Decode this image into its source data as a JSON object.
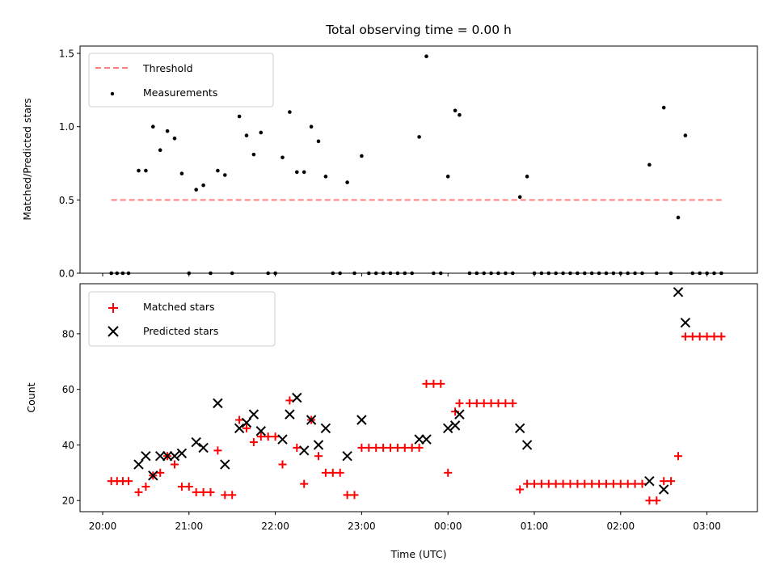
{
  "title": "Total observing time = 0.00 h",
  "x_axis": {
    "label": "Time (UTC)",
    "ticks": [
      {
        "t": "20:00",
        "label": "20:00"
      },
      {
        "t": "21:00",
        "label": "21:00"
      },
      {
        "t": "22:00",
        "label": "22:00"
      },
      {
        "t": "23:00",
        "label": "23:00"
      },
      {
        "t": "00:00",
        "label": "00:00"
      },
      {
        "t": "01:00",
        "label": "01:00"
      },
      {
        "t": "02:00",
        "label": "02:00"
      },
      {
        "t": "03:00",
        "label": "03:00"
      }
    ]
  },
  "colors": {
    "threshold": "#ff7f7f",
    "measurements": "#000000",
    "matched": "#ff0000",
    "predicted": "#000000"
  },
  "chart_data": [
    {
      "type": "scatter",
      "ylabel": "Matched/Predicted stars",
      "ylim": [
        0,
        1.55
      ],
      "yticks": [
        "0.0",
        "0.5",
        "1.0",
        "1.5"
      ],
      "legend_placement": "top-left",
      "series": [
        {
          "name": "Threshold",
          "kind": "dashed-line",
          "points": [
            [
              "20:06",
              0.5
            ],
            [
              "03:12",
              0.5
            ]
          ]
        },
        {
          "name": "Measurements",
          "kind": "dot",
          "points": [
            [
              "20:06",
              0
            ],
            [
              "20:10",
              0
            ],
            [
              "20:14",
              0
            ],
            [
              "20:18",
              0
            ],
            [
              "20:25",
              0.7
            ],
            [
              "20:30",
              0.7
            ],
            [
              "20:35",
              1.0
            ],
            [
              "20:40",
              0.84
            ],
            [
              "20:45",
              0.97
            ],
            [
              "20:50",
              0.92
            ],
            [
              "20:55",
              0.68
            ],
            [
              "21:00",
              0
            ],
            [
              "21:05",
              0.57
            ],
            [
              "21:10",
              0.6
            ],
            [
              "21:15",
              0
            ],
            [
              "21:20",
              0.7
            ],
            [
              "21:25",
              0.67
            ],
            [
              "21:30",
              0
            ],
            [
              "21:35",
              1.07
            ],
            [
              "21:40",
              0.94
            ],
            [
              "21:45",
              0.81
            ],
            [
              "21:50",
              0.96
            ],
            [
              "21:55",
              0
            ],
            [
              "22:00",
              0
            ],
            [
              "22:05",
              0.79
            ],
            [
              "22:10",
              1.1
            ],
            [
              "22:15",
              0.69
            ],
            [
              "22:20",
              0.69
            ],
            [
              "22:25",
              1.0
            ],
            [
              "22:30",
              0.9
            ],
            [
              "22:35",
              0.66
            ],
            [
              "22:40",
              0
            ],
            [
              "22:45",
              0
            ],
            [
              "22:50",
              0.62
            ],
            [
              "22:55",
              0
            ],
            [
              "23:00",
              0.8
            ],
            [
              "23:05",
              0
            ],
            [
              "23:10",
              0
            ],
            [
              "23:15",
              0
            ],
            [
              "23:20",
              0
            ],
            [
              "23:25",
              0
            ],
            [
              "23:30",
              0
            ],
            [
              "23:35",
              0
            ],
            [
              "23:40",
              0.93
            ],
            [
              "23:45",
              1.48
            ],
            [
              "23:50",
              0
            ],
            [
              "23:55",
              0
            ],
            [
              "00:00",
              0.66
            ],
            [
              "00:05",
              1.11
            ],
            [
              "00:08",
              1.08
            ],
            [
              "00:15",
              0
            ],
            [
              "00:20",
              0
            ],
            [
              "00:25",
              0
            ],
            [
              "00:30",
              0
            ],
            [
              "00:35",
              0
            ],
            [
              "00:40",
              0
            ],
            [
              "00:45",
              0
            ],
            [
              "00:50",
              0.52
            ],
            [
              "00:55",
              0.66
            ],
            [
              "01:00",
              0
            ],
            [
              "01:05",
              0
            ],
            [
              "01:10",
              0
            ],
            [
              "01:15",
              0
            ],
            [
              "01:20",
              0
            ],
            [
              "01:25",
              0
            ],
            [
              "01:30",
              0
            ],
            [
              "01:35",
              0
            ],
            [
              "01:40",
              0
            ],
            [
              "01:45",
              0
            ],
            [
              "01:50",
              0
            ],
            [
              "01:55",
              0
            ],
            [
              "02:00",
              0
            ],
            [
              "02:05",
              0
            ],
            [
              "02:10",
              0
            ],
            [
              "02:15",
              0
            ],
            [
              "02:20",
              0.74
            ],
            [
              "02:25",
              0
            ],
            [
              "02:30",
              1.13
            ],
            [
              "02:35",
              0
            ],
            [
              "02:40",
              0.38
            ],
            [
              "02:45",
              0.94
            ],
            [
              "02:50",
              0
            ],
            [
              "02:55",
              0
            ],
            [
              "03:00",
              0
            ],
            [
              "03:05",
              0
            ],
            [
              "03:10",
              0
            ]
          ]
        }
      ]
    },
    {
      "type": "scatter",
      "ylabel": "Count",
      "ylim": [
        16,
        98
      ],
      "yticks": [
        "20",
        "40",
        "60",
        "80"
      ],
      "legend_placement": "top-left",
      "series": [
        {
          "name": "Matched stars",
          "kind": "plus",
          "points": [
            [
              "20:06",
              27
            ],
            [
              "20:10",
              27
            ],
            [
              "20:14",
              27
            ],
            [
              "20:18",
              27
            ],
            [
              "20:25",
              23
            ],
            [
              "20:30",
              25
            ],
            [
              "20:35",
              29
            ],
            [
              "20:40",
              30
            ],
            [
              "20:45",
              36
            ],
            [
              "20:50",
              33
            ],
            [
              "20:55",
              25
            ],
            [
              "21:00",
              25
            ],
            [
              "21:05",
              23
            ],
            [
              "21:10",
              23
            ],
            [
              "21:15",
              23
            ],
            [
              "21:20",
              38
            ],
            [
              "21:25",
              22
            ],
            [
              "21:30",
              22
            ],
            [
              "21:35",
              49
            ],
            [
              "21:40",
              46
            ],
            [
              "21:45",
              41
            ],
            [
              "21:50",
              43
            ],
            [
              "21:55",
              43
            ],
            [
              "22:00",
              43
            ],
            [
              "22:05",
              33
            ],
            [
              "22:10",
              56
            ],
            [
              "22:15",
              39
            ],
            [
              "22:20",
              26
            ],
            [
              "22:25",
              49
            ],
            [
              "22:30",
              36
            ],
            [
              "22:35",
              30
            ],
            [
              "22:40",
              30
            ],
            [
              "22:45",
              30
            ],
            [
              "22:50",
              22
            ],
            [
              "22:55",
              22
            ],
            [
              "23:00",
              39
            ],
            [
              "23:05",
              39
            ],
            [
              "23:10",
              39
            ],
            [
              "23:15",
              39
            ],
            [
              "23:20",
              39
            ],
            [
              "23:25",
              39
            ],
            [
              "23:30",
              39
            ],
            [
              "23:35",
              39
            ],
            [
              "23:40",
              39
            ],
            [
              "23:45",
              62
            ],
            [
              "23:50",
              62
            ],
            [
              "23:55",
              62
            ],
            [
              "00:00",
              30
            ],
            [
              "00:05",
              52
            ],
            [
              "00:08",
              55
            ],
            [
              "00:15",
              55
            ],
            [
              "00:20",
              55
            ],
            [
              "00:25",
              55
            ],
            [
              "00:30",
              55
            ],
            [
              "00:35",
              55
            ],
            [
              "00:40",
              55
            ],
            [
              "00:45",
              55
            ],
            [
              "00:50",
              24
            ],
            [
              "00:55",
              26
            ],
            [
              "01:00",
              26
            ],
            [
              "01:05",
              26
            ],
            [
              "01:10",
              26
            ],
            [
              "01:15",
              26
            ],
            [
              "01:20",
              26
            ],
            [
              "01:25",
              26
            ],
            [
              "01:30",
              26
            ],
            [
              "01:35",
              26
            ],
            [
              "01:40",
              26
            ],
            [
              "01:45",
              26
            ],
            [
              "01:50",
              26
            ],
            [
              "01:55",
              26
            ],
            [
              "02:00",
              26
            ],
            [
              "02:05",
              26
            ],
            [
              "02:10",
              26
            ],
            [
              "02:15",
              26
            ],
            [
              "02:20",
              20
            ],
            [
              "02:25",
              20
            ],
            [
              "02:30",
              27
            ],
            [
              "02:35",
              27
            ],
            [
              "02:40",
              36
            ],
            [
              "02:45",
              79
            ],
            [
              "02:50",
              79
            ],
            [
              "02:55",
              79
            ],
            [
              "03:00",
              79
            ],
            [
              "03:05",
              79
            ],
            [
              "03:10",
              79
            ]
          ]
        },
        {
          "name": "Predicted stars",
          "kind": "x",
          "points": [
            [
              "20:25",
              33
            ],
            [
              "20:30",
              36
            ],
            [
              "20:35",
              29
            ],
            [
              "20:40",
              36
            ],
            [
              "20:45",
              36
            ],
            [
              "20:50",
              36
            ],
            [
              "20:55",
              37
            ],
            [
              "21:05",
              41
            ],
            [
              "21:10",
              39
            ],
            [
              "21:20",
              55
            ],
            [
              "21:25",
              33
            ],
            [
              "21:35",
              46
            ],
            [
              "21:40",
              48
            ],
            [
              "21:45",
              51
            ],
            [
              "21:50",
              45
            ],
            [
              "22:05",
              42
            ],
            [
              "22:10",
              51
            ],
            [
              "22:15",
              57
            ],
            [
              "22:20",
              38
            ],
            [
              "22:25",
              49
            ],
            [
              "22:30",
              40
            ],
            [
              "22:35",
              46
            ],
            [
              "22:50",
              36
            ],
            [
              "23:00",
              49
            ],
            [
              "23:40",
              42
            ],
            [
              "23:45",
              42
            ],
            [
              "00:00",
              46
            ],
            [
              "00:05",
              47
            ],
            [
              "00:08",
              51
            ],
            [
              "00:50",
              46
            ],
            [
              "00:55",
              40
            ],
            [
              "02:20",
              27
            ],
            [
              "02:30",
              24
            ],
            [
              "02:40",
              95
            ],
            [
              "02:45",
              84
            ]
          ]
        }
      ]
    }
  ]
}
